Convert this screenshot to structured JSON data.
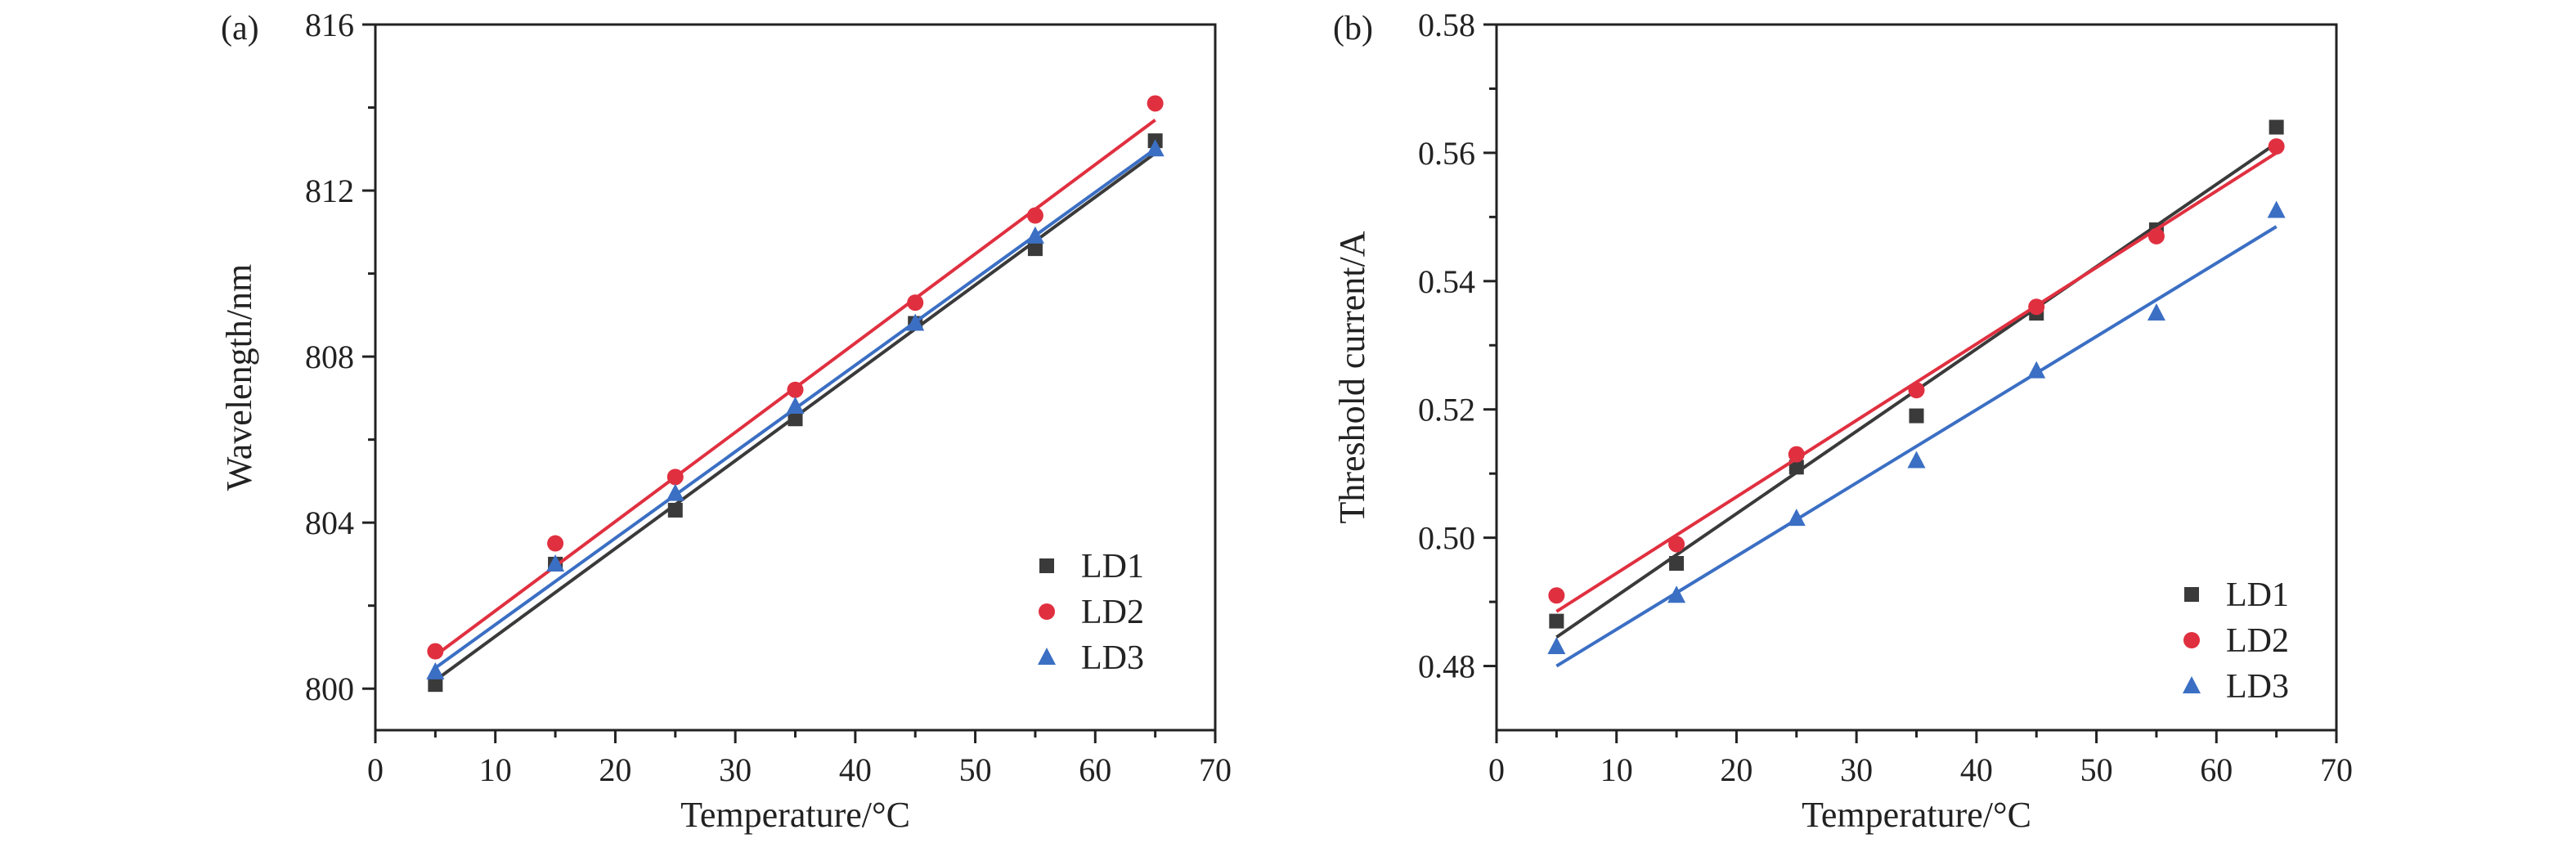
{
  "chart_data": [
    {
      "type": "scatter",
      "panel_label": "(a)",
      "title": "",
      "xlabel": "Temperature/°C",
      "ylabel": "Wavelength/nm",
      "xlim": [
        0,
        70
      ],
      "ylim": [
        799,
        816
      ],
      "x_ticks": [
        0,
        10,
        20,
        30,
        40,
        50,
        60,
        70
      ],
      "y_ticks": [
        800,
        804,
        808,
        812,
        816
      ],
      "y_tick_labels": [
        "800",
        "804",
        "808",
        "812",
        "816"
      ],
      "grid": false,
      "legend_position": "bottom-right",
      "x": [
        5,
        15,
        25,
        35,
        45,
        55,
        65
      ],
      "series": [
        {
          "name": "LD1",
          "marker": "square",
          "color": "#3a3a3a",
          "values": [
            800.1,
            803.0,
            804.3,
            806.5,
            808.8,
            810.6,
            813.2
          ],
          "fit": [
            800.2,
            812.9
          ]
        },
        {
          "name": "LD2",
          "marker": "circle",
          "color": "#e03040",
          "values": [
            800.9,
            803.5,
            805.1,
            807.2,
            809.3,
            811.4,
            814.1
          ],
          "fit": [
            800.8,
            813.7
          ]
        },
        {
          "name": "LD3",
          "marker": "triangle",
          "color": "#3b6fc4",
          "values": [
            800.4,
            803.0,
            804.7,
            806.8,
            808.8,
            810.9,
            813.0
          ],
          "fit": [
            800.5,
            813.0
          ]
        }
      ]
    },
    {
      "type": "scatter",
      "panel_label": "(b)",
      "title": "",
      "xlabel": "Temperature/°C",
      "ylabel": "Threshold current/A",
      "xlim": [
        0,
        70
      ],
      "ylim": [
        0.47,
        0.58
      ],
      "x_ticks": [
        0,
        10,
        20,
        30,
        40,
        50,
        60,
        70
      ],
      "y_ticks": [
        0.48,
        0.5,
        0.52,
        0.54,
        0.56,
        0.58
      ],
      "y_tick_labels": [
        "0.48",
        "0.50",
        "0.52",
        "0.54",
        "0.56",
        "0.58"
      ],
      "grid": false,
      "legend_position": "bottom-right",
      "x": [
        5,
        15,
        25,
        35,
        45,
        55,
        65
      ],
      "series": [
        {
          "name": "LD1",
          "marker": "square",
          "color": "#3a3a3a",
          "values": [
            0.487,
            0.496,
            0.511,
            0.519,
            0.535,
            0.548,
            0.564
          ],
          "fit": [
            0.4845,
            0.5615
          ]
        },
        {
          "name": "LD2",
          "marker": "circle",
          "color": "#e03040",
          "values": [
            0.491,
            0.499,
            0.513,
            0.523,
            0.536,
            0.547,
            0.561
          ],
          "fit": [
            0.4885,
            0.56
          ]
        },
        {
          "name": "LD3",
          "marker": "triangle",
          "color": "#3b6fc4",
          "values": [
            0.483,
            0.491,
            0.503,
            0.512,
            0.526,
            0.535,
            0.551
          ],
          "fit": [
            0.48,
            0.5485
          ]
        }
      ]
    }
  ]
}
